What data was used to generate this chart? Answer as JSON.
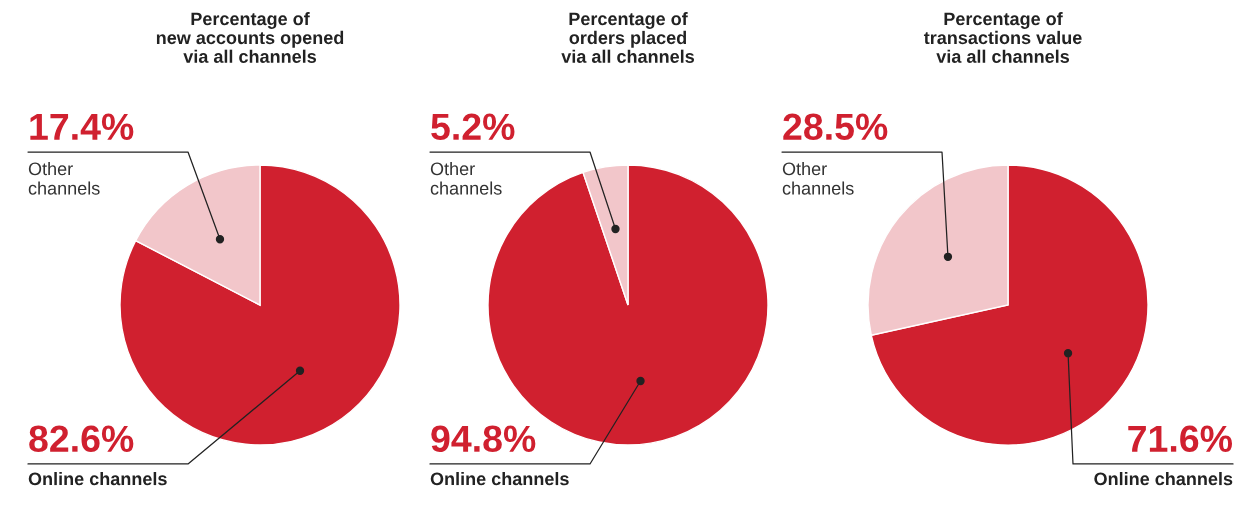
{
  "chart_data": [
    {
      "type": "pie",
      "title": "Percentage of\nnew accounts opened\nvia all channels",
      "categories": [
        "Online channels",
        "Other channels"
      ],
      "values": [
        82.6,
        17.4
      ],
      "colors": [
        "#d0202f",
        "#f2c6ca"
      ],
      "value_labels": [
        "82.6%",
        "17.4%"
      ]
    },
    {
      "type": "pie",
      "title": "Percentage of\norders placed\nvia all channels",
      "categories": [
        "Online channels",
        "Other channels"
      ],
      "values": [
        94.8,
        5.2
      ],
      "colors": [
        "#d0202f",
        "#f2c6ca"
      ],
      "value_labels": [
        "94.8%",
        "5.2%"
      ]
    },
    {
      "type": "pie",
      "title": "Percentage of\ntransactions value\nvia all channels",
      "categories": [
        "Online channels",
        "Other channels"
      ],
      "values": [
        71.6,
        28.5
      ],
      "colors": [
        "#d0202f",
        "#f2c6ca"
      ],
      "value_labels": [
        "71.6%",
        "28.5%"
      ]
    }
  ]
}
